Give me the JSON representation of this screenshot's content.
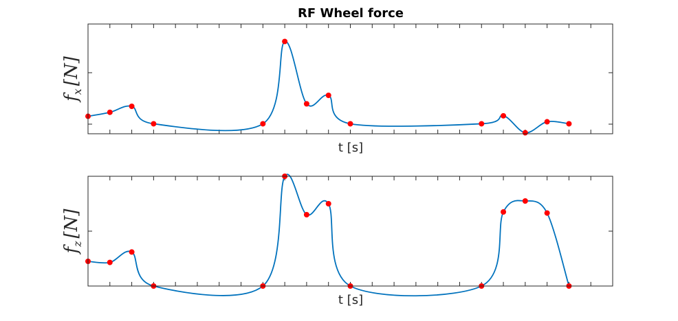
{
  "figure": {
    "title": "RF Wheel force"
  },
  "chart_data": [
    {
      "type": "line",
      "title": "RF Wheel force",
      "xlabel": "t [s]",
      "ylabel": {
        "base": "f",
        "sub": "x",
        "unit": "[N]"
      },
      "xlim": [
        0,
        24
      ],
      "ylim": [
        -0.2,
        2.0
      ],
      "ytick_count": 3,
      "grid": false,
      "colors": {
        "line": "#0072BD",
        "marker": "#FF0000"
      },
      "series": [
        {
          "x": [
            0,
            1,
            2,
            3,
            8,
            9,
            10,
            11,
            12,
            18,
            19,
            20,
            21,
            22
          ],
          "values": [
            0.15,
            0.23,
            0.35,
            0.0,
            0.0,
            1.65,
            0.4,
            0.57,
            0.0,
            0.0,
            0.16,
            -0.18,
            0.04,
            0.0
          ]
        }
      ]
    },
    {
      "type": "line",
      "title": "",
      "xlabel": "t [s]",
      "ylabel": {
        "base": "f",
        "sub": "z",
        "unit": "[N]"
      },
      "xlim": [
        0,
        24
      ],
      "ylim": [
        0,
        2.0
      ],
      "ytick_count": 3,
      "grid": false,
      "colors": {
        "line": "#0072BD",
        "marker": "#FF0000"
      },
      "series": [
        {
          "x": [
            0,
            1,
            2,
            3,
            8,
            9,
            10,
            11,
            12,
            18,
            19,
            20,
            21,
            22
          ],
          "values": [
            0.45,
            0.43,
            0.62,
            0.0,
            0.0,
            2.0,
            1.3,
            1.5,
            0.0,
            0.0,
            1.35,
            1.55,
            1.33,
            0.0
          ]
        }
      ]
    }
  ]
}
